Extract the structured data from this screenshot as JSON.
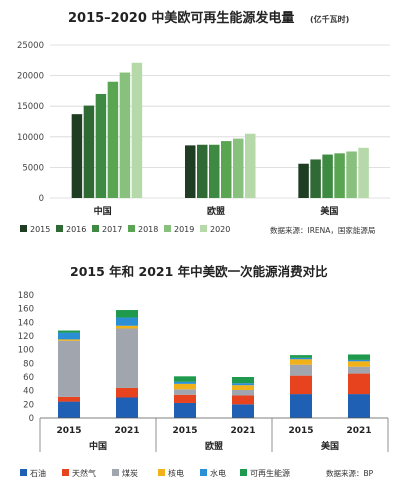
{
  "chart_data": [
    {
      "type": "bar",
      "title": "2015–2020 中美欧可再生能源发电量",
      "unit": "(亿千瓦时)",
      "source": "数据来源：IRENA，国家能源局",
      "categories": [
        "中国",
        "欧盟",
        "美国"
      ],
      "ylim": [
        0,
        25000
      ],
      "yticks": [
        0,
        5000,
        10000,
        15000,
        20000,
        25000
      ],
      "grid": true,
      "legend_position": "bottom",
      "series": [
        {
          "name": "2015",
          "color": "#1f3d22",
          "values": [
            13700,
            8600,
            5600
          ]
        },
        {
          "name": "2016",
          "color": "#2f6a34",
          "values": [
            15100,
            8700,
            6300
          ]
        },
        {
          "name": "2017",
          "color": "#3f8a42",
          "values": [
            17000,
            8700,
            7100
          ]
        },
        {
          "name": "2018",
          "color": "#5aa552",
          "values": [
            19000,
            9300,
            7300
          ]
        },
        {
          "name": "2019",
          "color": "#88c07d",
          "values": [
            20500,
            9700,
            7600
          ]
        },
        {
          "name": "2020",
          "color": "#b6d9aa",
          "values": [
            22100,
            10500,
            8200
          ]
        }
      ]
    },
    {
      "type": "bar",
      "stacked": true,
      "title": "2015 年和 2021 年中美欧一次能源消费对比",
      "source": "数据来源：BP",
      "groups": [
        "中国",
        "欧盟",
        "美国"
      ],
      "categories": [
        "2015",
        "2021",
        "2015",
        "2021",
        "2015",
        "2021"
      ],
      "ylim": [
        0,
        180
      ],
      "yticks": [
        0,
        20,
        40,
        60,
        80,
        100,
        120,
        140,
        160,
        180
      ],
      "grid": false,
      "legend_position": "bottom",
      "series": [
        {
          "name": "石油",
          "color": "#1f5fb4",
          "values": [
            24,
            30,
            22,
            20,
            35,
            35
          ]
        },
        {
          "name": "天然气",
          "color": "#e8431f",
          "values": [
            7,
            14,
            12,
            13,
            27,
            30
          ]
        },
        {
          "name": "煤炭",
          "color": "#a1a5ad",
          "values": [
            82,
            87,
            8,
            8,
            16,
            10
          ]
        },
        {
          "name": "核电",
          "color": "#f1b118",
          "values": [
            2,
            4,
            8,
            7,
            8,
            8
          ]
        },
        {
          "name": "水电",
          "color": "#2b8fd6",
          "values": [
            10,
            12,
            3,
            3,
            2,
            2
          ]
        },
        {
          "name": "可再生能源",
          "color": "#1f9a4d",
          "values": [
            3,
            11,
            8,
            9,
            4,
            8
          ]
        }
      ]
    }
  ]
}
